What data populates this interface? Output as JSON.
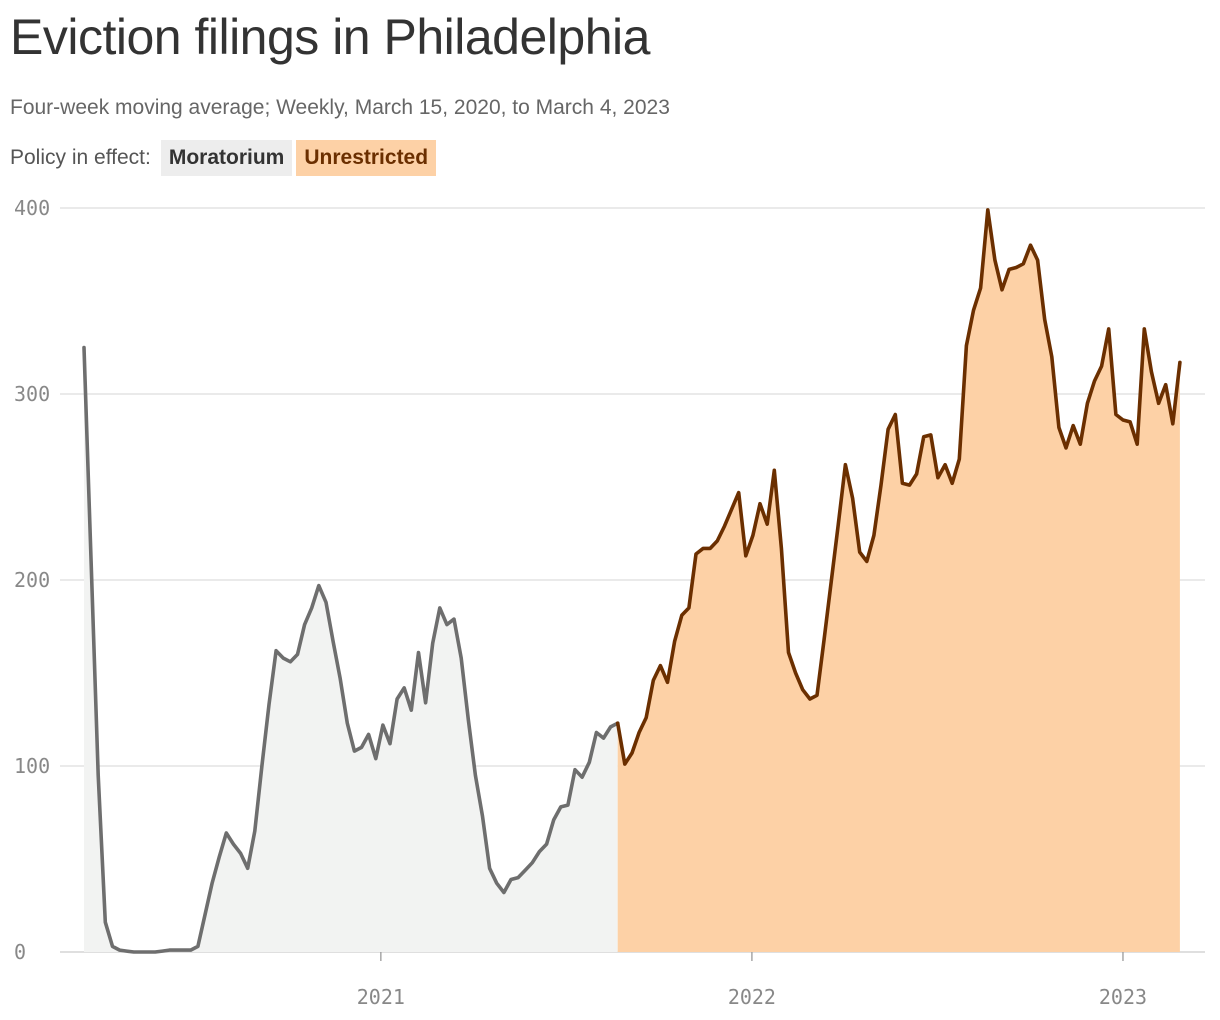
{
  "title": "Eviction filings in Philadelphia",
  "subtitle": "Four‑week moving average; Weekly, March 15, 2020, to March 4, 2023",
  "legend": {
    "label": "Policy in effect:",
    "items": [
      {
        "name": "Moratorium",
        "color": "#ededed",
        "line_color": "#6e6e6e"
      },
      {
        "name": "Unrestricted",
        "color": "#fdd1a6",
        "line_color": "#6b2f00"
      }
    ]
  },
  "chart_data": {
    "type": "area",
    "x_axis": {
      "type": "date",
      "range": [
        "2020-03-15",
        "2023-03-04"
      ],
      "ticks": [
        "2021",
        "2022",
        "2023"
      ]
    },
    "y_axis": {
      "range": [
        0,
        400
      ],
      "ticks": [
        0,
        100,
        200,
        300,
        400
      ]
    },
    "grid": true,
    "series": [
      {
        "name": "Moratorium",
        "points": [
          [
            "2020-03-15",
            325
          ],
          [
            "2020-03-22",
            210
          ],
          [
            "2020-03-29",
            95
          ],
          [
            "2020-04-05",
            16
          ],
          [
            "2020-04-12",
            3
          ],
          [
            "2020-04-19",
            1
          ],
          [
            "2020-04-26",
            0.5
          ],
          [
            "2020-05-03",
            0
          ],
          [
            "2020-05-10",
            0
          ],
          [
            "2020-05-17",
            0
          ],
          [
            "2020-05-24",
            0
          ],
          [
            "2020-05-31",
            0.5
          ],
          [
            "2020-06-07",
            1
          ],
          [
            "2020-06-14",
            1
          ],
          [
            "2020-06-21",
            1
          ],
          [
            "2020-06-28",
            1
          ],
          [
            "2020-07-05",
            3
          ],
          [
            "2020-07-12",
            20
          ],
          [
            "2020-07-19",
            37
          ],
          [
            "2020-07-26",
            51
          ],
          [
            "2020-08-02",
            64
          ],
          [
            "2020-08-09",
            58
          ],
          [
            "2020-08-16",
            53
          ],
          [
            "2020-08-23",
            45
          ],
          [
            "2020-08-30",
            65
          ],
          [
            "2020-09-06",
            100
          ],
          [
            "2020-09-13",
            133
          ],
          [
            "2020-09-20",
            162
          ],
          [
            "2020-09-27",
            158
          ],
          [
            "2020-10-04",
            156
          ],
          [
            "2020-10-11",
            160
          ],
          [
            "2020-10-18",
            176
          ],
          [
            "2020-10-25",
            185
          ],
          [
            "2020-11-01",
            197
          ],
          [
            "2020-11-08",
            188
          ],
          [
            "2020-11-15",
            167
          ],
          [
            "2020-11-22",
            147
          ],
          [
            "2020-11-29",
            123
          ],
          [
            "2020-12-06",
            108
          ],
          [
            "2020-12-13",
            110
          ],
          [
            "2020-12-20",
            117
          ],
          [
            "2020-12-27",
            104
          ],
          [
            "2021-01-03",
            122
          ],
          [
            "2021-01-10",
            112
          ],
          [
            "2021-01-17",
            136
          ],
          [
            "2021-01-24",
            142
          ],
          [
            "2021-01-31",
            130
          ],
          [
            "2021-02-07",
            161
          ],
          [
            "2021-02-14",
            134
          ],
          [
            "2021-02-21",
            166
          ],
          [
            "2021-02-28",
            185
          ],
          [
            "2021-03-07",
            176
          ],
          [
            "2021-03-14",
            179
          ],
          [
            "2021-03-21",
            158
          ],
          [
            "2021-03-28",
            125
          ],
          [
            "2021-04-04",
            95
          ],
          [
            "2021-04-11",
            73
          ],
          [
            "2021-04-18",
            45
          ],
          [
            "2021-04-25",
            37
          ],
          [
            "2021-05-02",
            32
          ],
          [
            "2021-05-09",
            39
          ],
          [
            "2021-05-16",
            40
          ],
          [
            "2021-05-23",
            44
          ],
          [
            "2021-05-30",
            48
          ],
          [
            "2021-06-06",
            54
          ],
          [
            "2021-06-13",
            58
          ],
          [
            "2021-06-20",
            71
          ],
          [
            "2021-06-27",
            78
          ],
          [
            "2021-07-04",
            79
          ],
          [
            "2021-07-11",
            98
          ],
          [
            "2021-07-18",
            94
          ],
          [
            "2021-07-25",
            102
          ],
          [
            "2021-08-01",
            118
          ],
          [
            "2021-08-08",
            115
          ],
          [
            "2021-08-15",
            121
          ],
          [
            "2021-08-22",
            123
          ]
        ]
      },
      {
        "name": "Unrestricted",
        "points": [
          [
            "2021-08-22",
            123
          ],
          [
            "2021-08-29",
            101
          ],
          [
            "2021-09-05",
            107
          ],
          [
            "2021-09-12",
            118
          ],
          [
            "2021-09-19",
            126
          ],
          [
            "2021-09-26",
            146
          ],
          [
            "2021-10-03",
            154
          ],
          [
            "2021-10-10",
            145
          ],
          [
            "2021-10-17",
            167
          ],
          [
            "2021-10-24",
            181
          ],
          [
            "2021-10-31",
            185
          ],
          [
            "2021-11-07",
            214
          ],
          [
            "2021-11-14",
            217
          ],
          [
            "2021-11-21",
            217
          ],
          [
            "2021-11-28",
            221
          ],
          [
            "2021-12-05",
            229
          ],
          [
            "2021-12-12",
            238
          ],
          [
            "2021-12-19",
            247
          ],
          [
            "2021-12-26",
            213
          ],
          [
            "2022-01-02",
            224
          ],
          [
            "2022-01-09",
            241
          ],
          [
            "2022-01-16",
            230
          ],
          [
            "2022-01-23",
            259
          ],
          [
            "2022-01-30",
            217
          ],
          [
            "2022-02-06",
            161
          ],
          [
            "2022-02-13",
            150
          ],
          [
            "2022-02-20",
            141
          ],
          [
            "2022-02-27",
            136
          ],
          [
            "2022-03-06",
            138
          ],
          [
            "2022-03-13",
            168
          ],
          [
            "2022-03-20",
            199
          ],
          [
            "2022-03-27",
            230
          ],
          [
            "2022-04-03",
            262
          ],
          [
            "2022-04-10",
            244
          ],
          [
            "2022-04-17",
            215
          ],
          [
            "2022-04-24",
            210
          ],
          [
            "2022-05-01",
            224
          ],
          [
            "2022-05-08",
            251
          ],
          [
            "2022-05-15",
            281
          ],
          [
            "2022-05-22",
            289
          ],
          [
            "2022-05-29",
            252
          ],
          [
            "2022-06-05",
            251
          ],
          [
            "2022-06-12",
            257
          ],
          [
            "2022-06-19",
            277
          ],
          [
            "2022-06-26",
            278
          ],
          [
            "2022-07-03",
            255
          ],
          [
            "2022-07-10",
            262
          ],
          [
            "2022-07-17",
            252
          ],
          [
            "2022-07-24",
            265
          ],
          [
            "2022-07-31",
            326
          ],
          [
            "2022-08-07",
            345
          ],
          [
            "2022-08-14",
            357
          ],
          [
            "2022-08-21",
            399
          ],
          [
            "2022-08-28",
            372
          ],
          [
            "2022-09-04",
            356
          ],
          [
            "2022-09-11",
            367
          ],
          [
            "2022-09-18",
            368
          ],
          [
            "2022-09-25",
            370
          ],
          [
            "2022-10-02",
            380
          ],
          [
            "2022-10-09",
            372
          ],
          [
            "2022-10-16",
            340
          ],
          [
            "2022-10-23",
            320
          ],
          [
            "2022-10-30",
            282
          ],
          [
            "2022-11-06",
            271
          ],
          [
            "2022-11-13",
            283
          ],
          [
            "2022-11-20",
            273
          ],
          [
            "2022-11-27",
            295
          ],
          [
            "2022-12-04",
            307
          ],
          [
            "2022-12-11",
            315
          ],
          [
            "2022-12-18",
            335
          ],
          [
            "2022-12-25",
            289
          ],
          [
            "2023-01-01",
            286
          ],
          [
            "2023-01-08",
            285
          ],
          [
            "2023-01-15",
            273
          ],
          [
            "2023-01-22",
            335
          ],
          [
            "2023-01-29",
            312
          ],
          [
            "2023-02-05",
            295
          ],
          [
            "2023-02-12",
            305
          ],
          [
            "2023-02-19",
            284
          ],
          [
            "2023-02-26",
            317
          ]
        ]
      }
    ]
  }
}
